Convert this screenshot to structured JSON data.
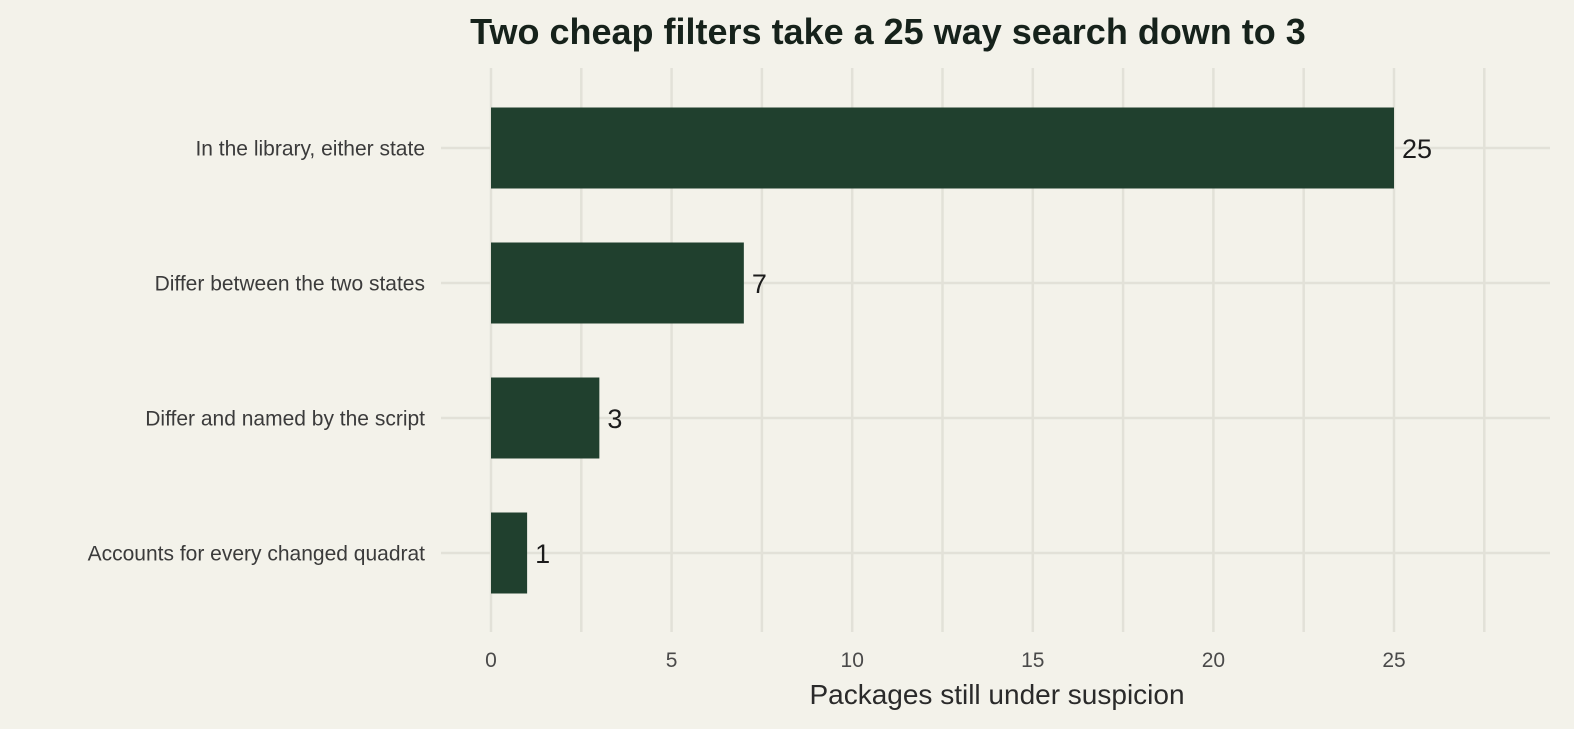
{
  "chart_data": {
    "type": "bar",
    "orientation": "horizontal",
    "title": "Two cheap filters take a 25 way search down to 3",
    "xlabel": "Packages still under suspicion",
    "ylabel": "",
    "categories": [
      "In the library, either state",
      "Differ between the two states",
      "Differ and named by the script",
      "Accounts for every changed quadrat"
    ],
    "values": [
      25,
      7,
      3,
      1
    ],
    "value_labels": [
      "25",
      "7",
      "3",
      "1"
    ],
    "xlim": [
      0,
      29.5
    ],
    "xticks": [
      0,
      5,
      10,
      15,
      20,
      25
    ],
    "xtick_labels": [
      "0",
      "5",
      "10",
      "15",
      "20",
      "25"
    ],
    "grid": true,
    "legend": "none",
    "colors": {
      "bar": "#20402e",
      "background": "#f3f2ea",
      "grid": "#e2e1d8"
    }
  }
}
